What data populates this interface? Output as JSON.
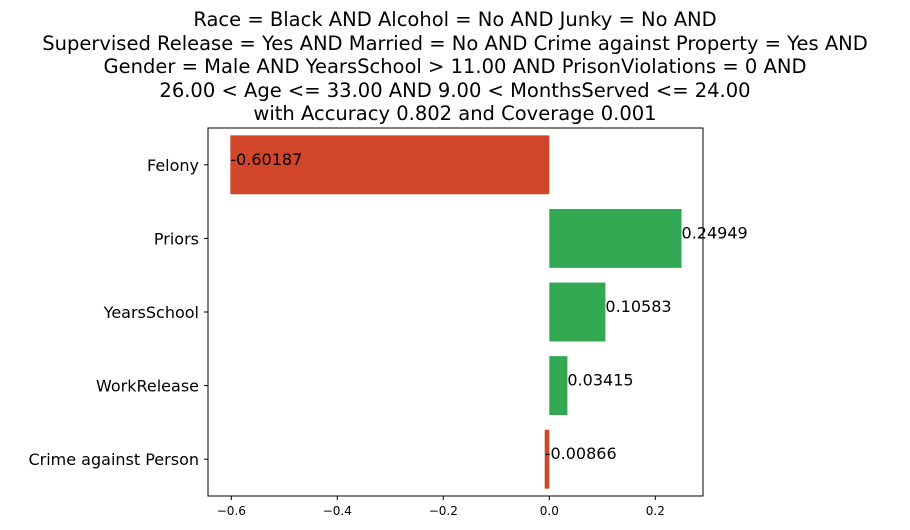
{
  "colors": {
    "positive": "#33a852",
    "negative": "#d1462b",
    "axis": "#000000",
    "background": "#ffffff"
  },
  "chart_data": {
    "type": "bar",
    "orientation": "horizontal",
    "title_lines": [
      "Race = Black AND Alcohol = No AND Junky = No AND",
      "Supervised Release = Yes AND Married = No AND Crime against Property = Yes AND",
      "Gender = Male AND YearsSchool > 11.00 AND PrisonViolations = 0 AND",
      "26.00 < Age <= 33.00 AND 9.00 < MonthsServed <= 24.00",
      "with Accuracy 0.802 and Coverage 0.001"
    ],
    "categories": [
      "Felony",
      "Priors",
      "YearsSchool",
      "WorkRelease",
      "Crime against Person"
    ],
    "values": [
      -0.60187,
      0.24949,
      0.10583,
      0.03415,
      -0.00866
    ],
    "value_labels": [
      "-0.60187",
      "0.24949",
      "0.10583",
      "0.03415",
      "-0.00866"
    ],
    "xticks": [
      -0.6,
      -0.4,
      -0.2,
      0.0,
      0.2
    ],
    "xtick_labels": [
      "−0.6",
      "−0.4",
      "−0.2",
      "0.0",
      "0.2"
    ],
    "xlim": [
      -0.644,
      0.29
    ],
    "xlabel": "",
    "ylabel": "",
    "grid": false,
    "legend": "none"
  }
}
